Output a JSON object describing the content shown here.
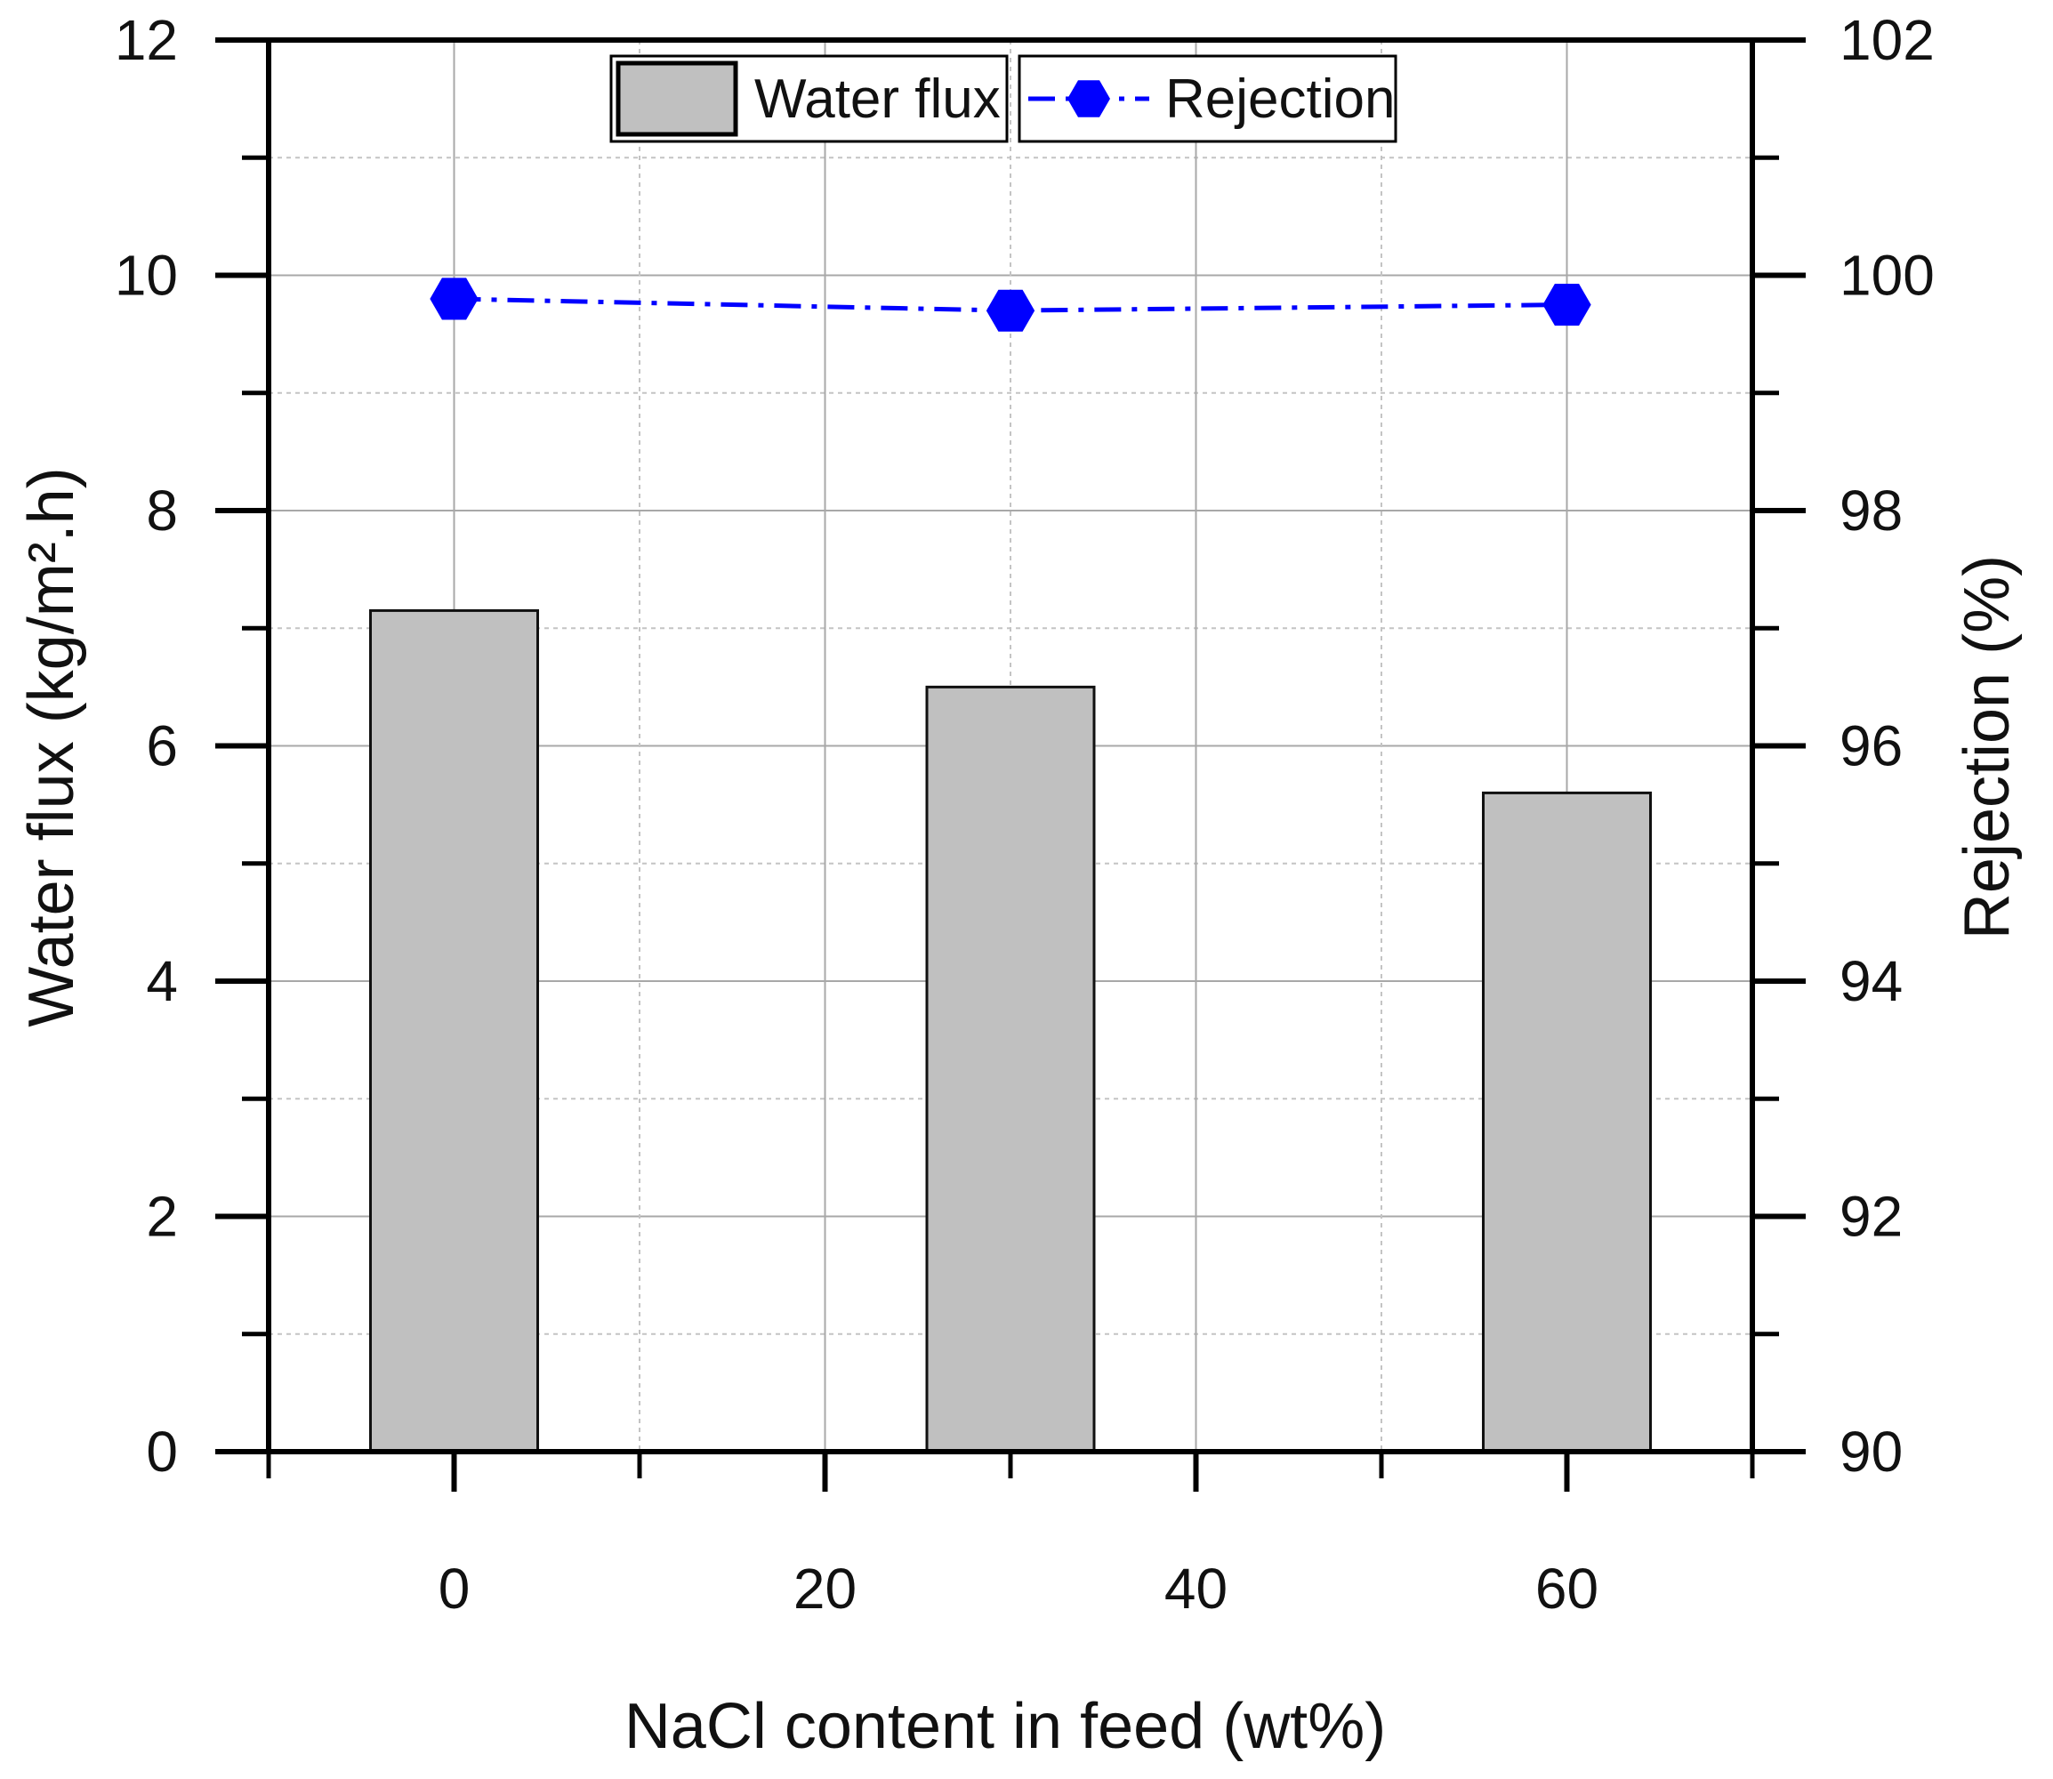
{
  "chart_data": {
    "type": "bar",
    "x_ticks": [
      0,
      20,
      40,
      60
    ],
    "xlabel": "NaCl content in feed (wt%)",
    "ylabel": "Water flux (kg/m².h)",
    "y2label": "Rejection (%)",
    "xlim": [
      -10,
      70
    ],
    "ylim": [
      0,
      12
    ],
    "y2lim": [
      90,
      102
    ],
    "y_ticks": [
      0,
      2,
      4,
      6,
      8,
      10,
      12
    ],
    "y2_ticks": [
      90,
      92,
      94,
      96,
      98,
      100,
      102
    ],
    "grid": true,
    "legend_position": "top-center",
    "series": [
      {
        "name": "Water flux",
        "type": "bar",
        "axis": "left",
        "x": [
          0,
          30,
          60
        ],
        "values": [
          7.15,
          6.5,
          5.6
        ],
        "color": "#c0c0c0"
      },
      {
        "name": "Rejection",
        "type": "line",
        "axis": "right",
        "x": [
          0,
          30,
          60
        ],
        "values": [
          99.8,
          99.7,
          99.75
        ],
        "color": "#0000ff",
        "line_style": "dash-dot",
        "marker": "hexagon"
      }
    ]
  }
}
